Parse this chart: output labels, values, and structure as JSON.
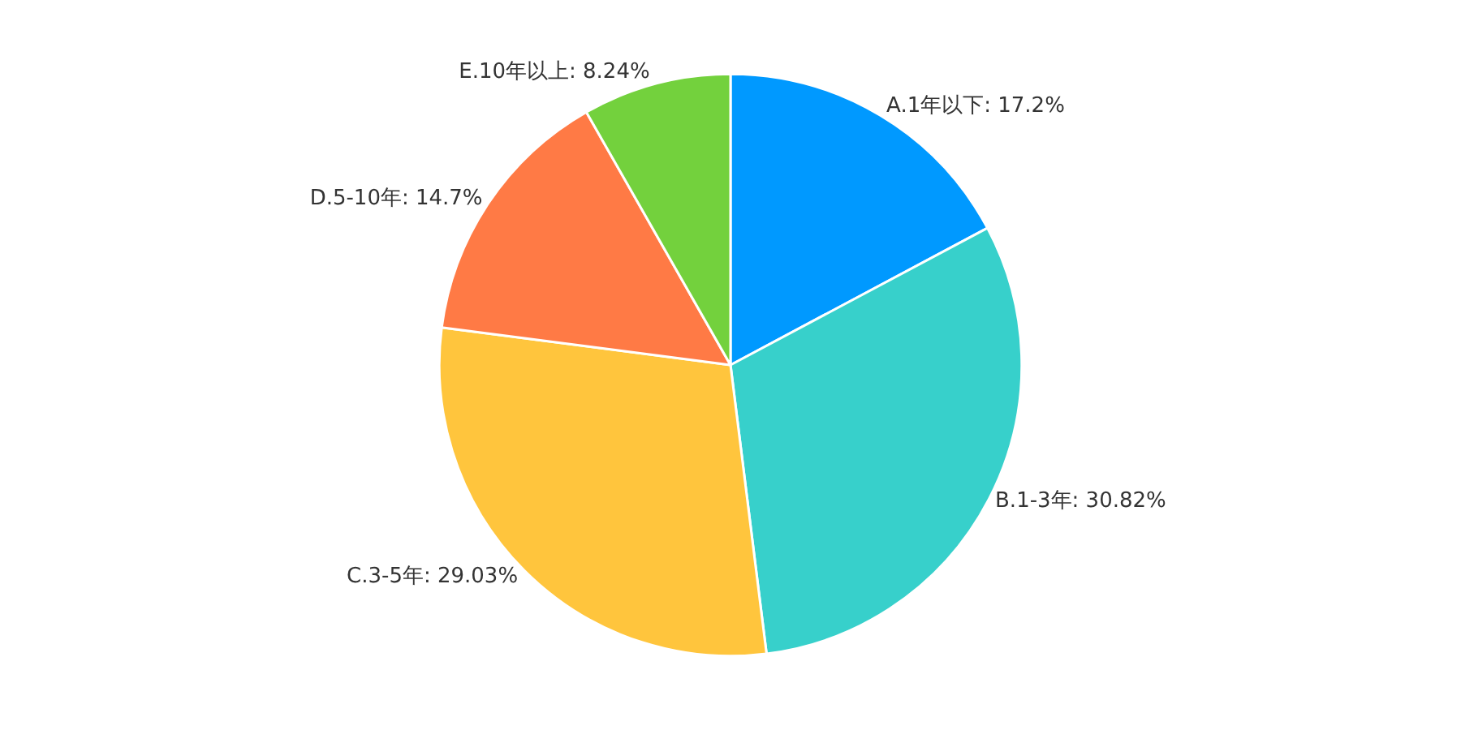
{
  "chart_data": {
    "type": "pie",
    "categories": [
      "A.1年以下",
      "B.1-3年",
      "C.3-5年",
      "D.5-10年",
      "E.10年以上"
    ],
    "values": [
      17.2,
      30.82,
      29.03,
      14.7,
      8.24
    ],
    "value_labels": [
      "17.2%",
      "30.82%",
      "29.03%",
      "14.7%",
      "8.24%"
    ],
    "colors": [
      "#0099ff",
      "#37d0cb",
      "#ffc53d",
      "#ff7a45",
      "#73d13d"
    ],
    "legend": false
  }
}
